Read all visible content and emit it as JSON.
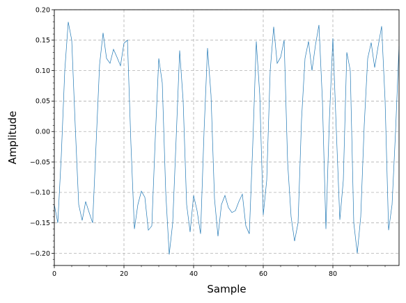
{
  "chart_data": {
    "type": "line",
    "title": "",
    "xlabel": "Sample",
    "ylabel": "Amplitude",
    "xlim": [
      0,
      99
    ],
    "ylim": [
      -0.22,
      0.2
    ],
    "grid": true,
    "line_color": "#1f77b4",
    "grid_color": "#b0b0b0",
    "xticks": [
      0,
      20,
      40,
      60,
      80
    ],
    "yticks": [
      -0.2,
      -0.15,
      -0.1,
      -0.05,
      0.0,
      0.05,
      0.1,
      0.15,
      0.2
    ],
    "xtick_labels": [
      "0",
      "20",
      "40",
      "60",
      "80"
    ],
    "ytick_labels": [
      "−0.20",
      "−0.15",
      "−0.10",
      "−0.05",
      "0.00",
      "0.05",
      "0.10",
      "0.15",
      "0.20"
    ],
    "series": [
      {
        "x": [
          0,
          1,
          2,
          3,
          4,
          5,
          6,
          7,
          8,
          9,
          10,
          11,
          12,
          13,
          14,
          15,
          16,
          17,
          18,
          19,
          20,
          21,
          22,
          23,
          24,
          25,
          26,
          27,
          28,
          29,
          30,
          31,
          32,
          33,
          34,
          35,
          36,
          37,
          38,
          39,
          40,
          41,
          42,
          43,
          44,
          45,
          46,
          47,
          48,
          49,
          50,
          51,
          52,
          53,
          54,
          55,
          56,
          57,
          58,
          59,
          60,
          61,
          62,
          63,
          64,
          65,
          66,
          67,
          68,
          69,
          70,
          71,
          72,
          73,
          74,
          75,
          76,
          77,
          78,
          79,
          80,
          81,
          82,
          83,
          84,
          85,
          86,
          87,
          88,
          89,
          90,
          91,
          92,
          93,
          94,
          95,
          96,
          97,
          98,
          99
        ],
        "values": [
          -0.12,
          -0.15,
          -0.04,
          0.1,
          0.18,
          0.15,
          0.01,
          -0.12,
          -0.146,
          -0.115,
          -0.133,
          -0.15,
          -0.02,
          0.11,
          0.162,
          0.12,
          0.112,
          0.135,
          0.122,
          0.108,
          0.145,
          0.15,
          -0.02,
          -0.16,
          -0.12,
          -0.098,
          -0.108,
          -0.162,
          -0.155,
          -0.01,
          0.12,
          0.08,
          -0.1,
          -0.202,
          -0.15,
          -0.01,
          0.133,
          0.05,
          -0.12,
          -0.165,
          -0.105,
          -0.13,
          -0.168,
          0.0,
          0.137,
          0.06,
          -0.11,
          -0.172,
          -0.12,
          -0.105,
          -0.125,
          -0.133,
          -0.13,
          -0.115,
          -0.103,
          -0.155,
          -0.168,
          -0.02,
          0.148,
          0.06,
          -0.137,
          -0.08,
          0.1,
          0.172,
          0.112,
          0.122,
          0.15,
          -0.05,
          -0.14,
          -0.18,
          -0.15,
          0.02,
          0.12,
          0.148,
          0.1,
          0.142,
          0.175,
          0.05,
          -0.16,
          0.02,
          0.153,
          0.0,
          -0.145,
          -0.08,
          0.13,
          0.1,
          -0.15,
          -0.2,
          -0.14,
          0.01,
          0.12,
          0.146,
          0.105,
          0.14,
          0.173,
          0.05,
          -0.162,
          -0.12,
          0.0,
          0.14
        ]
      }
    ]
  }
}
